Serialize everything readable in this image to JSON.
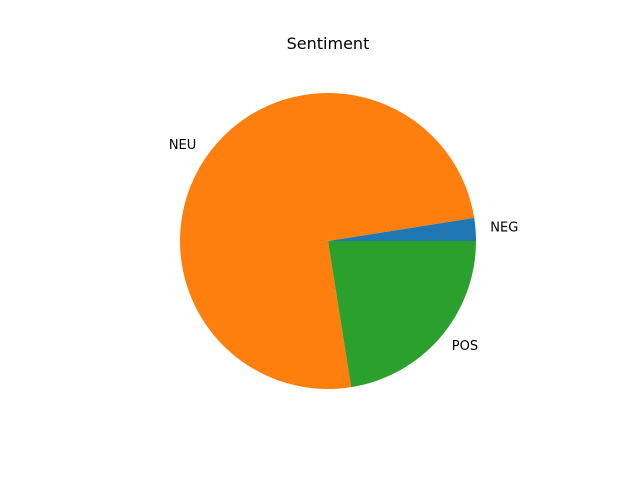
{
  "chart_data": {
    "type": "pie",
    "title": "Sentiment",
    "slices": [
      {
        "label": "NEG",
        "value": 2.5,
        "color": "#1f77b4"
      },
      {
        "label": "NEU",
        "value": 75.0,
        "color": "#ff7f0e"
      },
      {
        "label": "POS",
        "value": 22.5,
        "color": "#2ca02c"
      }
    ],
    "start_angle_deg": 0,
    "direction": "counterclockwise"
  }
}
